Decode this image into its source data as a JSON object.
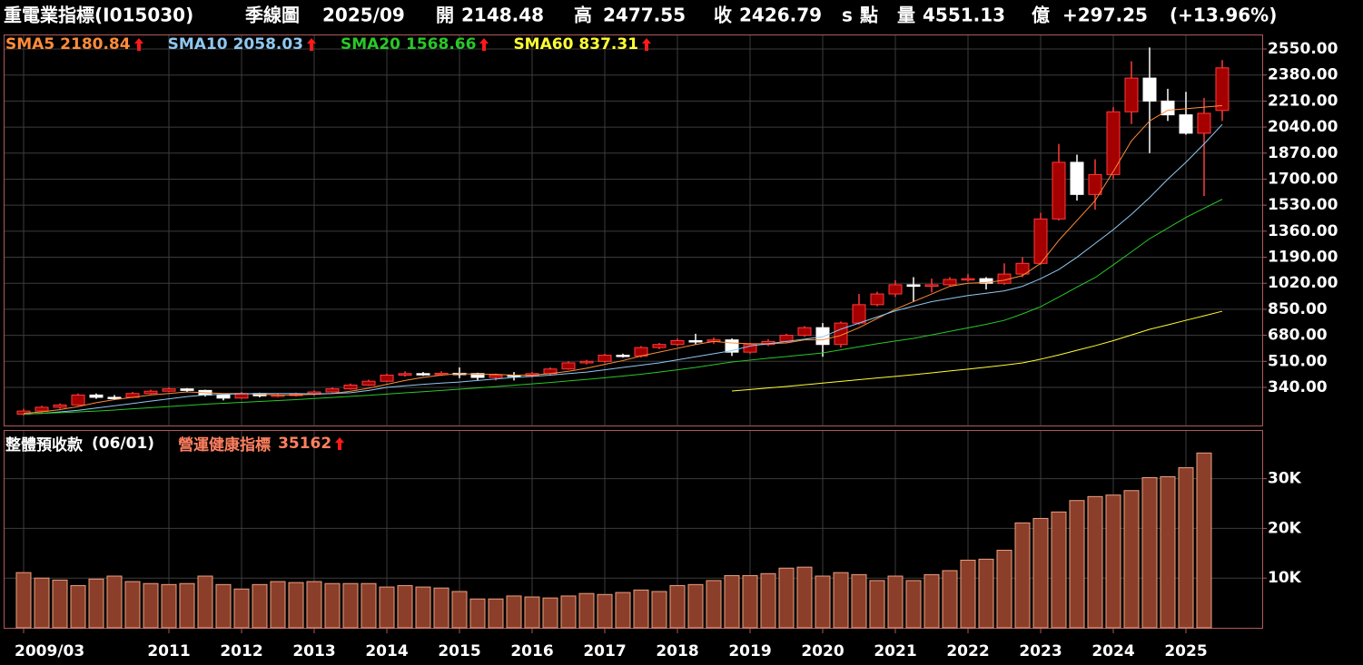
{
  "header": {
    "name": "重電業指標(I015030)",
    "period": "季線圖",
    "date": "2025/09",
    "open_label": "開",
    "high_label": "高",
    "close_label": "收",
    "unit_s": "s",
    "unit": "點",
    "volume_label": "量",
    "volume": 4551.13,
    "volume_unit": "億",
    "change": "+297.25",
    "change_pct": "(+13.96%)"
  },
  "chart_data": [
    {
      "type": "candlestick",
      "categories": [
        "2009/03",
        null,
        null,
        null,
        null,
        null,
        null,
        null,
        "2011",
        null,
        null,
        null,
        "2012",
        null,
        null,
        null,
        "2013",
        null,
        null,
        null,
        "2014",
        null,
        null,
        null,
        "2015",
        null,
        null,
        null,
        "2016",
        null,
        null,
        null,
        "2017",
        null,
        null,
        null,
        "2018",
        null,
        null,
        null,
        "2019",
        null,
        null,
        null,
        "2020",
        null,
        null,
        null,
        "2021",
        null,
        null,
        null,
        "2022",
        null,
        null,
        null,
        "2023",
        null,
        null,
        null,
        "2024",
        null,
        null,
        null,
        "2025",
        null,
        null
      ],
      "open": [
        165,
        185,
        210,
        225,
        290,
        275,
        275,
        300,
        315,
        330,
        320,
        290,
        270,
        300,
        285,
        290,
        295,
        310,
        330,
        355,
        380,
        420,
        430,
        425,
        432,
        430,
        405,
        420,
        415,
        430,
        460,
        500,
        510,
        550,
        545,
        600,
        620,
        645,
        640,
        650,
        570,
        620,
        640,
        680,
        730,
        620,
        760,
        880,
        950,
        1010,
        1000,
        1010,
        1045,
        1050,
        1020,
        1080,
        1150,
        1440,
        1810,
        1600,
        1730,
        2140,
        2360,
        2210,
        2120,
        2000,
        2148.48
      ],
      "high": [
        200,
        220,
        235,
        300,
        300,
        290,
        310,
        325,
        340,
        335,
        325,
        295,
        310,
        305,
        300,
        305,
        320,
        340,
        365,
        390,
        430,
        445,
        440,
        445,
        470,
        435,
        430,
        440,
        440,
        470,
        510,
        520,
        560,
        560,
        610,
        630,
        660,
        690,
        665,
        660,
        630,
        655,
        690,
        740,
        760,
        770,
        950,
        965,
        1040,
        1060,
        1050,
        1060,
        1080,
        1060,
        1150,
        1190,
        1480,
        1930,
        1860,
        1830,
        2170,
        2470,
        2560,
        2290,
        2270,
        2230,
        2477.55
      ],
      "low": [
        155,
        175,
        200,
        220,
        265,
        260,
        270,
        295,
        310,
        310,
        280,
        255,
        265,
        275,
        275,
        280,
        285,
        305,
        325,
        350,
        375,
        410,
        415,
        415,
        400,
        385,
        385,
        385,
        405,
        420,
        455,
        490,
        500,
        535,
        535,
        590,
        610,
        620,
        625,
        545,
        560,
        610,
        630,
        670,
        540,
        600,
        750,
        870,
        930,
        900,
        960,
        1000,
        1030,
        980,
        1010,
        1060,
        1140,
        1430,
        1560,
        1500,
        1700,
        2060,
        1870,
        2080,
        1990,
        1590,
        2080
      ],
      "close": [
        185,
        210,
        225,
        290,
        275,
        275,
        300,
        315,
        330,
        320,
        290,
        270,
        300,
        285,
        290,
        295,
        310,
        330,
        355,
        380,
        420,
        430,
        425,
        432,
        430,
        405,
        420,
        415,
        430,
        460,
        500,
        510,
        550,
        545,
        600,
        620,
        645,
        640,
        650,
        570,
        620,
        640,
        680,
        730,
        620,
        760,
        880,
        950,
        1010,
        1000,
        1010,
        1045,
        1050,
        1020,
        1080,
        1150,
        1440,
        1810,
        1600,
        1730,
        2140,
        2360,
        2210,
        2120,
        2000,
        2130,
        2426.79
      ],
      "up_color": "#a50000",
      "up_edge": "#ff3a3a",
      "down_color": "#ffffff",
      "arrow_color": "#ff1a1a",
      "series": [
        {
          "name": "SMA5",
          "color": "#ff8c3a",
          "values": [
            170,
            180,
            195,
            215,
            240,
            260,
            275,
            290,
            300,
            310,
            305,
            300,
            300,
            295,
            290,
            290,
            295,
            300,
            315,
            335,
            360,
            385,
            405,
            420,
            430,
            425,
            425,
            420,
            420,
            430,
            445,
            465,
            490,
            515,
            545,
            570,
            595,
            620,
            640,
            630,
            625,
            625,
            630,
            650,
            650,
            680,
            730,
            790,
            850,
            900,
            950,
            1000,
            1020,
            1025,
            1040,
            1070,
            1150,
            1300,
            1430,
            1560,
            1750,
            1950,
            2080,
            2150,
            2160,
            2170,
            2180.84
          ]
        },
        {
          "name": "SMA10",
          "color": "#8fc8f0",
          "values": [
            165,
            170,
            180,
            190,
            205,
            220,
            235,
            250,
            265,
            280,
            290,
            295,
            298,
            300,
            300,
            300,
            298,
            300,
            305,
            320,
            340,
            350,
            360,
            368,
            375,
            385,
            395,
            405,
            412,
            420,
            430,
            440,
            455,
            470,
            485,
            500,
            520,
            540,
            560,
            580,
            610,
            625,
            640,
            655,
            670,
            720,
            760,
            800,
            840,
            870,
            900,
            920,
            940,
            955,
            970,
            1000,
            1050,
            1110,
            1190,
            1280,
            1370,
            1470,
            1580,
            1700,
            1810,
            1930,
            2058.03
          ]
        },
        {
          "name": "SMA20",
          "color": "#28c828",
          "values": [
            165,
            170,
            175,
            180,
            185,
            192,
            200,
            207,
            215,
            222,
            230,
            236,
            242,
            248,
            254,
            260,
            267,
            274,
            281,
            288,
            296,
            304,
            312,
            320,
            328,
            336,
            345,
            354,
            363,
            372,
            382,
            392,
            403,
            414,
            426,
            440,
            455,
            470,
            488,
            506,
            518,
            530,
            541,
            553,
            565,
            585,
            605,
            625,
            643,
            660,
            683,
            706,
            729,
            752,
            778,
            820,
            867,
            930,
            995,
            1057,
            1140,
            1225,
            1311,
            1380,
            1450,
            1510,
            1568.66
          ]
        },
        {
          "name": "SMA60",
          "color": "#ffff33",
          "values": [
            null,
            null,
            null,
            null,
            null,
            null,
            null,
            null,
            null,
            null,
            null,
            null,
            null,
            null,
            null,
            null,
            null,
            null,
            null,
            null,
            null,
            null,
            null,
            null,
            null,
            null,
            null,
            null,
            null,
            null,
            null,
            null,
            null,
            null,
            null,
            null,
            null,
            null,
            null,
            316,
            326,
            336,
            346,
            357,
            368,
            379,
            390,
            401,
            412,
            423,
            435,
            447,
            459,
            472,
            485,
            500,
            524,
            552,
            582,
            612,
            645,
            682,
            719,
            748,
            778,
            807,
            837.31
          ]
        }
      ],
      "ylim": [
        91,
        2639
      ],
      "yticks": [
        {
          "value": 340,
          "label": "340.00"
        },
        {
          "value": 510,
          "label": "510.00"
        },
        {
          "value": 680,
          "label": "680.00"
        },
        {
          "value": 850,
          "label": "850.00"
        },
        {
          "value": 1020,
          "label": "1020.00"
        },
        {
          "value": 1190,
          "label": "1190.00"
        },
        {
          "value": 1360,
          "label": "1360.00"
        },
        {
          "value": 1530,
          "label": "1530.00"
        },
        {
          "value": 1700,
          "label": "1700.00"
        },
        {
          "value": 1870,
          "label": "1870.00"
        },
        {
          "value": 2040,
          "label": "2040.00"
        },
        {
          "value": 2210,
          "label": "2210.00"
        },
        {
          "value": 2380,
          "label": "2380.00"
        },
        {
          "value": 2550,
          "label": "2550.00"
        }
      ],
      "grid": true
    },
    {
      "type": "bar",
      "title": "整體預收款",
      "subtitle": "(06/01)",
      "series": [
        {
          "name": "營運健康指標",
          "color": "#8b3f2a",
          "edge": "#e8a080",
          "values": [
            11100,
            10000,
            9600,
            8500,
            9800,
            10400,
            9300,
            8900,
            8700,
            8900,
            10400,
            8700,
            7800,
            8700,
            9300,
            9100,
            9300,
            8900,
            8900,
            8900,
            8200,
            8500,
            8200,
            8000,
            7300,
            5800,
            5800,
            6400,
            6200,
            6000,
            6400,
            6900,
            6700,
            7100,
            7600,
            7300,
            8500,
            8700,
            9500,
            10500,
            10500,
            10900,
            12000,
            12200,
            10400,
            11100,
            10700,
            9500,
            10400,
            9500,
            10700,
            11500,
            13600,
            13800,
            15600,
            21100,
            22000,
            23300,
            25600,
            26400,
            26700,
            27600,
            30200,
            30400,
            32200,
            35162,
            null
          ]
        }
      ],
      "ylim": [
        0,
        39600
      ],
      "yticks": [
        {
          "value": 10000,
          "label": "10K"
        },
        {
          "value": 20000,
          "label": "20K"
        },
        {
          "value": 30000,
          "label": "30K"
        }
      ],
      "grid": true
    }
  ]
}
